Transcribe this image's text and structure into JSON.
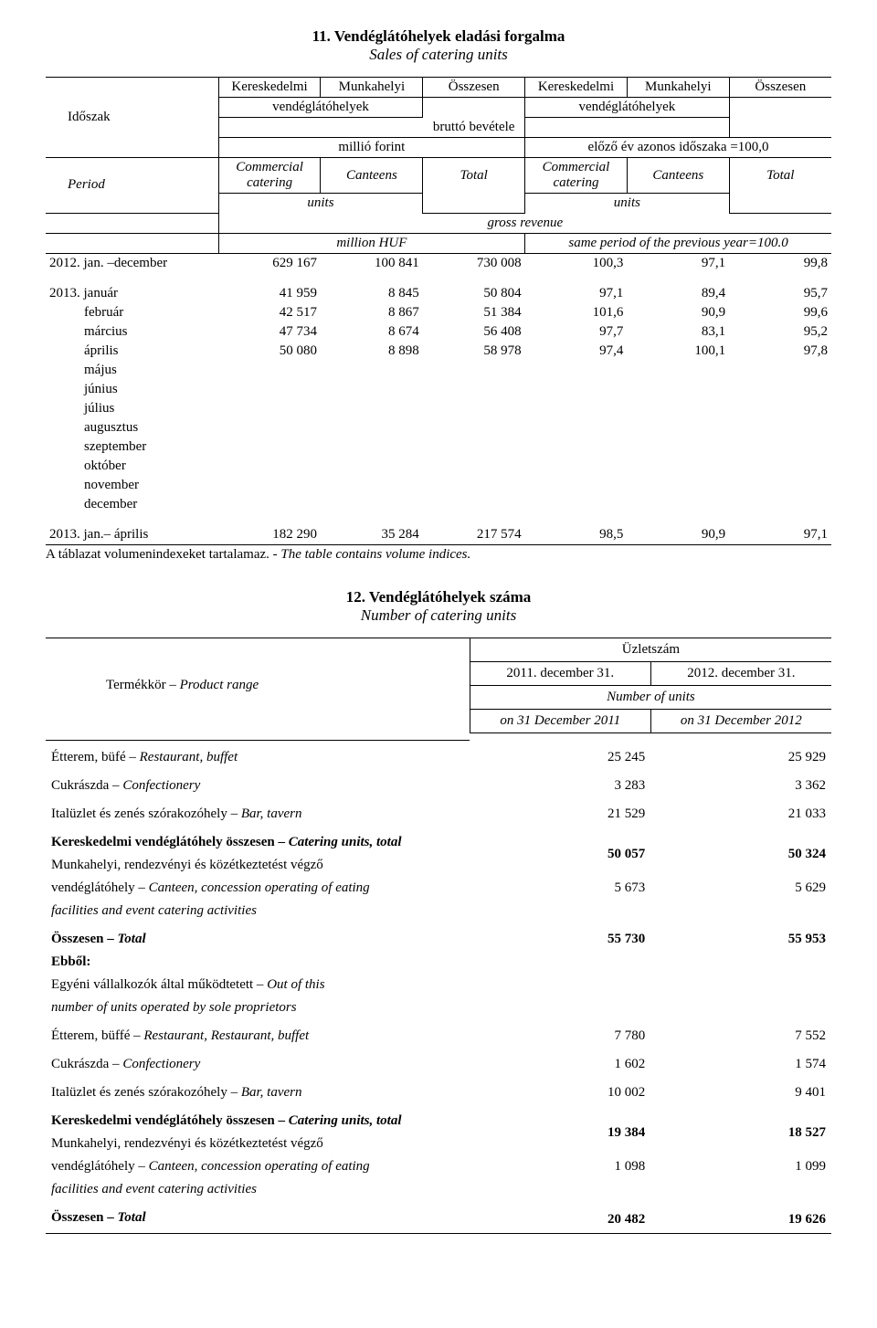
{
  "section1": {
    "title": "11. Vendéglátóhelyek eladási forgalma",
    "subtitle": "Sales of catering units",
    "header": {
      "idoszak": "Időszak",
      "period": "Period",
      "kereskedelmi": "Kereskedelmi",
      "munkahelyi": "Munkahelyi",
      "osszesen": "Összesen",
      "vendeglatohelyek": "vendéglátóhelyek",
      "brutto_bevetele": "bruttó bevétele",
      "millio_forint": "millió forint",
      "elozo_ev": "előző év azonos időszaka =100,0",
      "commercial": "Commercial",
      "catering": "catering",
      "canteens": "Canteens",
      "total": "Total",
      "units": "units",
      "gross_revenue": "gross revenue",
      "million_huf": "million HUF",
      "same_period": "same period of the previous year=100.0"
    },
    "baseline": {
      "label": "2012. jan. –december",
      "v": [
        "629 167",
        "100 841",
        "730 008",
        "100,3",
        "97,1",
        "99,8"
      ]
    },
    "prefix": "2013.",
    "months": [
      {
        "label": "január",
        "v": [
          "41 959",
          "8 845",
          "50 804",
          "97,1",
          "89,4",
          "95,7"
        ]
      },
      {
        "label": "február",
        "v": [
          "42 517",
          "8 867",
          "51 384",
          "101,6",
          "90,9",
          "99,6"
        ]
      },
      {
        "label": "március",
        "v": [
          "47 734",
          "8 674",
          "56 408",
          "97,7",
          "83,1",
          "95,2"
        ]
      },
      {
        "label": "április",
        "v": [
          "50 080",
          "8 898",
          "58 978",
          "97,4",
          "100,1",
          "97,8"
        ]
      },
      {
        "label": "május"
      },
      {
        "label": "június"
      },
      {
        "label": "július"
      },
      {
        "label": "augusztus"
      },
      {
        "label": "szeptember"
      },
      {
        "label": "október"
      },
      {
        "label": "november"
      },
      {
        "label": "december"
      }
    ],
    "summary": {
      "label": "2013. jan.– április",
      "v": [
        "182 290",
        "35 284",
        "217 574",
        "98,5",
        "90,9",
        "97,1"
      ]
    },
    "footnote_hu": "A táblazat volumenindexeket tartalamaz. - ",
    "footnote_en": "The table contains volume indices."
  },
  "section2": {
    "title": "12. Vendéglátóhelyek száma",
    "subtitle": "Number of catering units",
    "header": {
      "termekkor": "Termékkör – ",
      "product_range": "Product range",
      "uzletszam": "Üzletszám",
      "col1": "2011. december 31.",
      "col2": "2012. december 31.",
      "number_of_units": "Number of units",
      "sub1": "on 31 December 2011",
      "sub2": "on 31 December 2012"
    },
    "rows": [
      {
        "hu": "Étterem, büfé – ",
        "en": "Restaurant, buffet",
        "a": "25 245",
        "b": "25 929"
      },
      {
        "hu": "Cukrászda – ",
        "en": "Confectionery",
        "a": "3 283",
        "b": "3 362"
      },
      {
        "hu": "Italüzlet és zenés szórakozóhely  – ",
        "en": "Bar, tavern",
        "a": "21 529",
        "b": "21 033"
      }
    ],
    "kvo_total": {
      "hu": "Kereskedelmi vendéglátóhely összesen – ",
      "en": "Catering units, total",
      "a": "50 057",
      "b": "50 324"
    },
    "canteen": {
      "hu1": "Munkahelyi, rendezvényi és közétkeztetést végző",
      "hu2": "vendéglátóhely – ",
      "en": "Canteen, concession operating of eating",
      "hu3": "facilities and event catering activities",
      "a": "5 673",
      "b": "5 629"
    },
    "osszesen": {
      "hu": "Összesen – ",
      "en": "Total",
      "a": "55 730",
      "b": "55 953"
    },
    "ebbol": {
      "label": "Ebből:",
      "hu1": "Egyéni vállalkozók által működtetett – ",
      "en1": "Out of  this",
      "hu2": "number of units operated by sole proprietors"
    },
    "sub_rows": [
      {
        "hu": "Étterem, büffé  – ",
        "en": "Restaurant, Restaurant, buffet",
        "a": "7 780",
        "b": "7 552"
      },
      {
        "hu": "Cukrászda  – ",
        "en": "Confectionery",
        "a": "1 602",
        "b": "1 574"
      },
      {
        "hu": "Italüzlet és zenés szórakozóhely  – ",
        "en": "Bar, tavern",
        "a": "10 002",
        "b": "9 401"
      }
    ],
    "kvo_total2": {
      "hu": "Kereskedelmi vendéglátóhely összesen – ",
      "en": "Catering units, total",
      "a": "19 384",
      "b": "18 527"
    },
    "canteen2": {
      "hu1": "Munkahelyi, rendezvényi és közétkeztetést végző",
      "hu2": "vendéglátóhely – ",
      "en": "Canteen, concession operating of eating",
      "hu3": "facilities and event catering activities",
      "a": "1 098",
      "b": "1 099"
    },
    "osszesen2": {
      "hu": "Összesen – ",
      "en": "Total",
      "a": "20 482",
      "b": "19 626"
    }
  }
}
